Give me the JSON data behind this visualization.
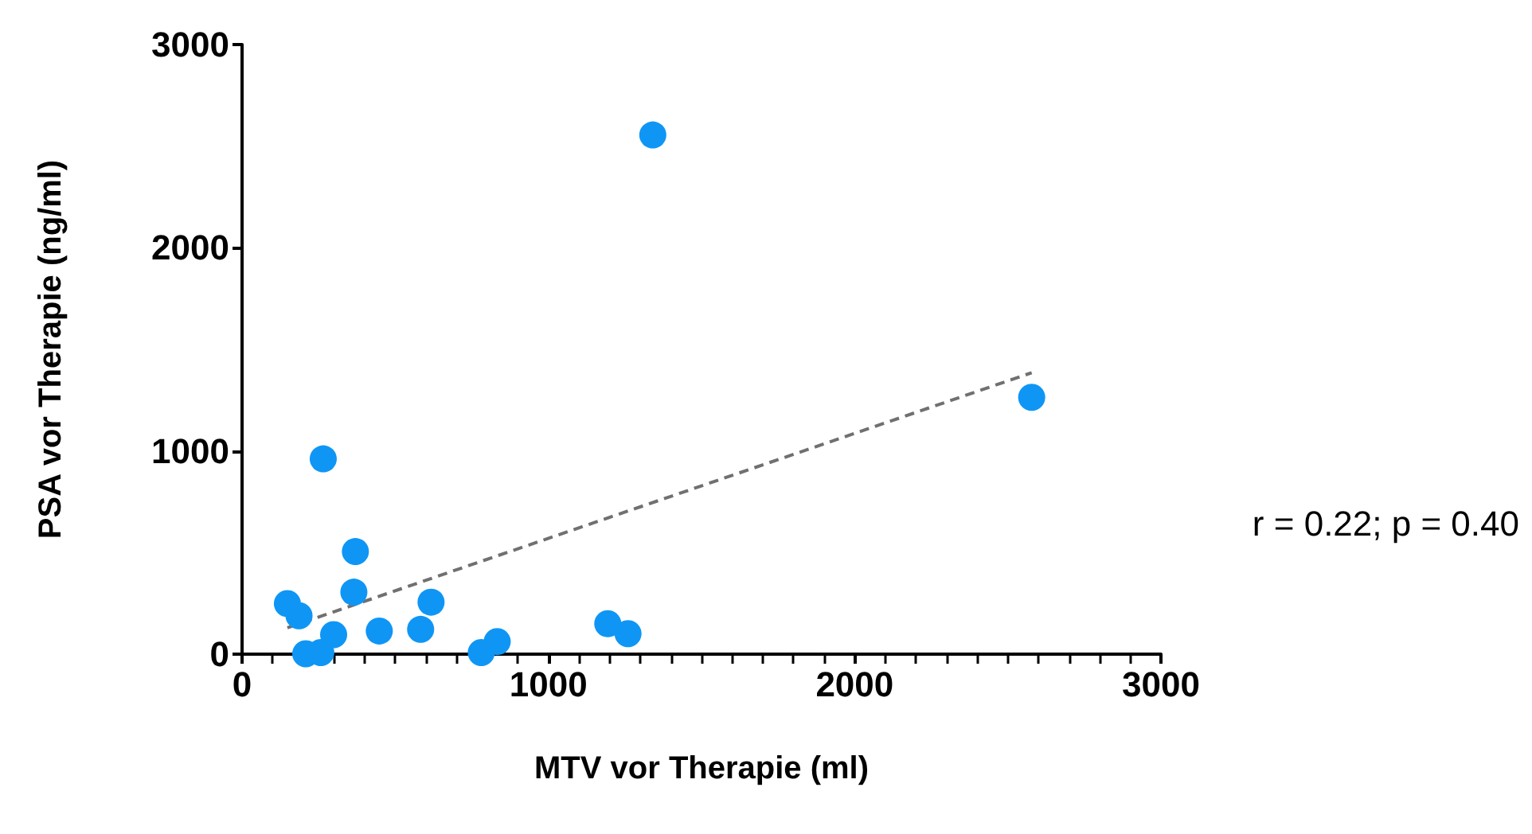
{
  "chart_data": {
    "type": "scatter",
    "xlabel": "MTV vor Therapie (ml)",
    "ylabel": "PSA vor Therapie (ng/ml)",
    "xlim": [
      0,
      3000
    ],
    "xticks": [
      0,
      1000,
      2000,
      3000
    ],
    "ylim": [
      0,
      3000
    ],
    "yticks": [
      0,
      1000,
      2000,
      3000
    ],
    "grid": false,
    "marker": "circle",
    "annotations": [
      "r = 0.22; p = 0.40"
    ],
    "series": [
      {
        "color": "#0f96f5",
        "x": [
          148,
          186,
          265,
          370,
          365,
          208,
          257,
          299,
          448,
          583,
          617,
          781,
          833,
          1194,
          1260,
          1341,
          2578
        ],
        "values": [
          249,
          189,
          961,
          505,
          305,
          2,
          8,
          96,
          114,
          122,
          256,
          8,
          62,
          150,
          101,
          2555,
          1264
        ]
      },
      {
        "type": "line",
        "color": "#707070",
        "line_style": "dashed",
        "marker": "none",
        "x": [
          148,
          2578
        ],
        "values": [
          130,
          1385
        ]
      }
    ]
  }
}
